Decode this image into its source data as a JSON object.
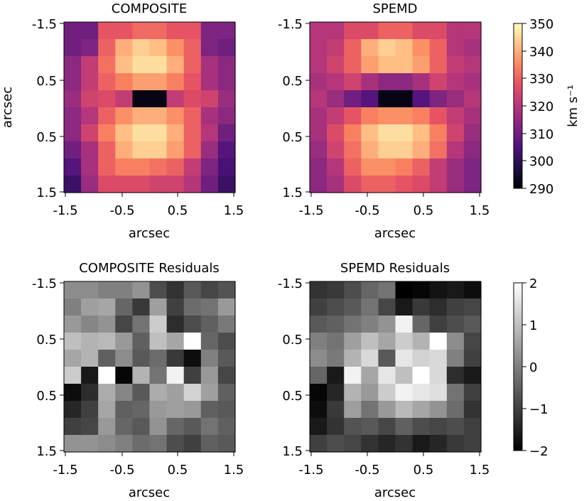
{
  "chart_data": [
    {
      "type": "heatmap",
      "title": "COMPOSITE",
      "xlabel": "arcsec",
      "ylabel": "arcsec",
      "x_ticks": [
        "-1.5",
        "-0.5",
        "0.5",
        "1.5"
      ],
      "y_ticks": [
        "-1.5",
        "0.5",
        "0.5",
        "1.5"
      ],
      "colormap": "magma",
      "value_range": [
        290,
        350
      ],
      "grid": [
        [
          310,
          310,
          328,
          328,
          331,
          331,
          328,
          328,
          312,
          312
        ],
        [
          310,
          312,
          330,
          340,
          344,
          342,
          336,
          330,
          312,
          310
        ],
        [
          314,
          322,
          332,
          342,
          346,
          346,
          340,
          330,
          318,
          314
        ],
        [
          314,
          322,
          330,
          334,
          338,
          338,
          334,
          328,
          318,
          314
        ],
        [
          316,
          324,
          326,
          322,
          292,
          292,
          322,
          326,
          324,
          316
        ],
        [
          314,
          320,
          330,
          336,
          340,
          340,
          336,
          330,
          318,
          314
        ],
        [
          314,
          324,
          334,
          342,
          346,
          346,
          340,
          330,
          320,
          310
        ],
        [
          310,
          318,
          330,
          340,
          344,
          344,
          338,
          330,
          316,
          306
        ],
        [
          306,
          318,
          330,
          334,
          334,
          332,
          330,
          322,
          312,
          304
        ],
        [
          302,
          316,
          326,
          326,
          326,
          324,
          324,
          320,
          310,
          302
        ]
      ]
    },
    {
      "type": "heatmap",
      "title": "SPEMD",
      "xlabel": "arcsec",
      "ylabel": "",
      "x_ticks": [
        "-1.5",
        "-0.5",
        "0.5",
        "1.5"
      ],
      "y_ticks": [
        "-1.5",
        "0.5",
        "0.5",
        "1.5"
      ],
      "colormap": "magma",
      "value_range": [
        290,
        350
      ],
      "grid": [
        [
          320,
          320,
          326,
          326,
          330,
          330,
          326,
          326,
          320,
          320
        ],
        [
          320,
          322,
          330,
          340,
          344,
          342,
          336,
          330,
          320,
          318
        ],
        [
          320,
          324,
          330,
          338,
          342,
          342,
          338,
          330,
          322,
          320
        ],
        [
          318,
          320,
          324,
          318,
          314,
          314,
          318,
          324,
          320,
          318
        ],
        [
          320,
          316,
          310,
          306,
          292,
          292,
          306,
          312,
          316,
          320
        ],
        [
          318,
          322,
          328,
          334,
          336,
          336,
          334,
          328,
          322,
          318
        ],
        [
          318,
          326,
          334,
          342,
          346,
          346,
          342,
          334,
          324,
          316
        ],
        [
          316,
          324,
          332,
          340,
          344,
          344,
          340,
          332,
          320,
          314
        ],
        [
          314,
          320,
          330,
          336,
          336,
          334,
          330,
          322,
          316,
          312
        ],
        [
          314,
          318,
          326,
          330,
          330,
          328,
          326,
          322,
          316,
          312
        ]
      ]
    },
    {
      "type": "heatmap",
      "title": "COMPOSITE Residuals",
      "xlabel": "arcsec",
      "ylabel": "",
      "x_ticks": [
        "-1.5",
        "-0.5",
        "0.5",
        "1.5"
      ],
      "y_ticks": [
        "-1.5",
        "0.5",
        "0.5",
        "1.5"
      ],
      "colormap": "gray",
      "value_range": [
        -2,
        2
      ],
      "grid": [
        [
          0.2,
          0.2,
          0.0,
          0.0,
          0.3,
          -0.8,
          -1.2,
          -0.6,
          -0.9,
          -0.7
        ],
        [
          0.0,
          0.5,
          0.6,
          -0.4,
          -1.1,
          0.5,
          -1.0,
          -0.3,
          -0.2,
          0.4
        ],
        [
          0.4,
          0.1,
          0.3,
          -0.9,
          -0.2,
          1.2,
          -1.3,
          -0.8,
          -0.5,
          -0.1
        ],
        [
          1.0,
          0.8,
          0.9,
          0.4,
          -0.5,
          1.0,
          0.6,
          2.0,
          -0.4,
          -0.8
        ],
        [
          0.6,
          0.8,
          -0.5,
          0.2,
          -0.6,
          -0.3,
          -1.1,
          -1.8,
          0.0,
          -0.6
        ],
        [
          1.2,
          -1.6,
          2.0,
          -1.9,
          0.8,
          -0.2,
          1.8,
          -1.0,
          0.4,
          -0.9
        ],
        [
          -1.8,
          -1.3,
          0.7,
          0.1,
          -0.6,
          0.7,
          0.5,
          1.3,
          0.5,
          -0.5
        ],
        [
          -1.4,
          -1.0,
          0.6,
          -0.5,
          -0.4,
          0.4,
          0.5,
          0.4,
          -0.5,
          -0.6
        ],
        [
          -1.0,
          -0.9,
          0.4,
          -0.4,
          -0.6,
          0.3,
          -0.4,
          -0.6,
          -0.2,
          -0.5
        ],
        [
          0.3,
          0.3,
          0.2,
          0.0,
          -0.3,
          -0.2,
          -0.8,
          -1.0,
          -0.5,
          -0.6
        ]
      ]
    },
    {
      "type": "heatmap",
      "title": "SPEMD Residuals",
      "xlabel": "arcsec",
      "ylabel": "",
      "x_ticks": [
        "-1.5",
        "-0.5",
        "0.5",
        "1.5"
      ],
      "y_ticks": [
        "-1.5",
        "0.5",
        "0.5",
        "1.5"
      ],
      "colormap": "gray",
      "value_range": [
        -2,
        2
      ],
      "grid": [
        [
          -1.2,
          -1.1,
          -0.8,
          -0.4,
          -0.2,
          -2.0,
          -1.9,
          -1.7,
          -1.6,
          -1.8
        ],
        [
          -1.0,
          -0.8,
          -0.6,
          -0.2,
          -0.9,
          -1.6,
          -1.1,
          -1.3,
          -1.0,
          -0.9
        ],
        [
          -0.6,
          -0.5,
          -0.2,
          0.0,
          0.3,
          1.8,
          -0.4,
          -1.0,
          -0.8,
          -0.6
        ],
        [
          0.0,
          -0.2,
          0.5,
          1.0,
          0.6,
          1.2,
          0.8,
          2.0,
          0.2,
          -0.9
        ],
        [
          0.2,
          -0.1,
          0.8,
          1.4,
          -0.6,
          1.6,
          1.3,
          1.4,
          0.0,
          -1.0
        ],
        [
          -0.4,
          -1.6,
          1.8,
          0.6,
          1.6,
          1.0,
          2.0,
          1.4,
          -1.3,
          -1.6
        ],
        [
          -1.9,
          -1.4,
          0.8,
          0.4,
          1.2,
          1.8,
          1.6,
          1.5,
          -0.2,
          -1.0
        ],
        [
          -1.8,
          -1.1,
          0.5,
          -0.2,
          0.4,
          0.9,
          0.6,
          0.3,
          -0.3,
          -1.2
        ],
        [
          -1.6,
          -1.2,
          -0.7,
          -0.6,
          -0.9,
          -0.5,
          -0.8,
          -0.9,
          -0.8,
          -1.0
        ],
        [
          -1.0,
          -0.8,
          -0.9,
          -1.2,
          -1.4,
          -1.2,
          -1.6,
          -1.4,
          -1.1,
          -1.0
        ]
      ]
    }
  ],
  "colorbars": [
    {
      "ticks": [
        "350",
        "340",
        "330",
        "320",
        "310",
        "300",
        "290"
      ],
      "label": "km s⁻¹"
    },
    {
      "ticks": [
        "2",
        "1",
        "0",
        "−1",
        "−2"
      ]
    }
  ]
}
